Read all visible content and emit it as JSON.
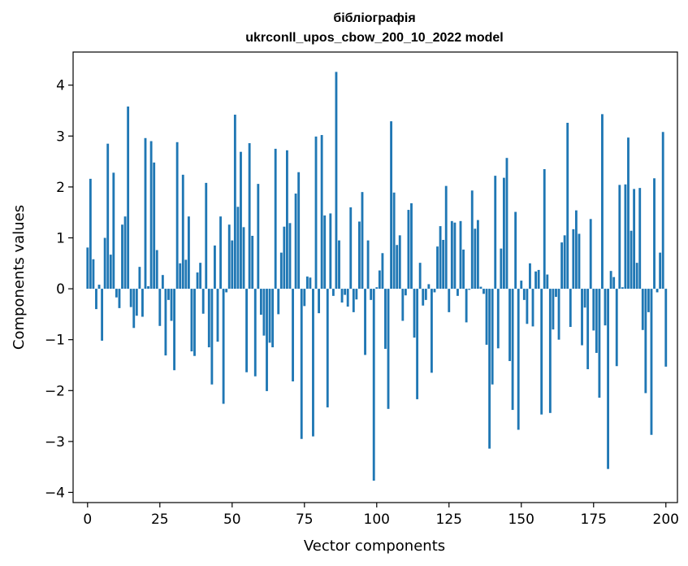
{
  "chart_data": {
    "type": "bar",
    "title": "бібліографія",
    "subtitle": "ukrconll_upos_cbow_200_10_2022 model",
    "xlabel": "Vector components",
    "ylabel": "Components values",
    "xlim": [
      -5,
      204
    ],
    "ylim": [
      -4.2,
      4.65
    ],
    "xticks": [
      0,
      25,
      50,
      75,
      100,
      125,
      150,
      175,
      200
    ],
    "xtick_labels": [
      "0",
      "25",
      "50",
      "75",
      "100",
      "125",
      "150",
      "175",
      "200"
    ],
    "yticks": [
      -4,
      -3,
      -2,
      -1,
      0,
      1,
      2,
      3,
      4
    ],
    "ytick_labels": [
      "−4",
      "−3",
      "−2",
      "−1",
      "0",
      "1",
      "2",
      "3",
      "4"
    ],
    "grid": false,
    "color": "#1f77b4",
    "values": [
      0.81,
      2.16,
      0.58,
      -0.4,
      0.08,
      -1.02,
      1.0,
      2.85,
      0.67,
      2.28,
      -0.17,
      -0.38,
      1.26,
      1.42,
      3.58,
      -0.36,
      -0.77,
      -0.53,
      0.43,
      -0.55,
      2.96,
      0.05,
      2.9,
      2.48,
      0.76,
      -0.73,
      0.27,
      -1.31,
      -0.22,
      -0.63,
      -1.6,
      2.88,
      0.5,
      2.24,
      0.57,
      1.42,
      -1.23,
      -1.32,
      0.32,
      0.51,
      -0.49,
      2.08,
      -1.15,
      -1.88,
      0.85,
      -1.04,
      1.42,
      -2.26,
      -0.07,
      1.26,
      0.95,
      3.42,
      1.61,
      2.69,
      1.21,
      -1.64,
      2.86,
      1.04,
      -1.72,
      2.06,
      -0.51,
      -0.92,
      -2.01,
      -1.06,
      -1.15,
      2.75,
      -0.5,
      0.71,
      1.22,
      2.72,
      1.29,
      -1.82,
      1.87,
      2.29,
      -2.95,
      -0.34,
      0.24,
      0.22,
      -2.9,
      2.99,
      -0.48,
      3.02,
      1.44,
      -2.33,
      1.48,
      -0.14,
      4.26,
      0.95,
      -0.27,
      -0.12,
      -0.35,
      1.6,
      -0.46,
      -0.21,
      1.32,
      1.9,
      -1.3,
      0.95,
      -0.22,
      -3.77,
      0.03,
      0.36,
      0.7,
      -1.18,
      -2.36,
      3.29,
      1.89,
      0.86,
      1.05,
      -0.63,
      -0.13,
      1.55,
      1.68,
      -0.96,
      -2.17,
      0.51,
      -0.33,
      -0.22,
      0.09,
      -1.65,
      -0.07,
      0.83,
      1.23,
      0.96,
      2.02,
      -0.46,
      1.33,
      1.3,
      -0.14,
      1.33,
      0.77,
      -0.66,
      -0.02,
      1.93,
      1.18,
      1.35,
      0.04,
      -0.1,
      -1.1,
      -3.14,
      -1.88,
      2.22,
      -1.17,
      0.79,
      2.18,
      2.57,
      -1.42,
      -2.38,
      1.51,
      -2.77,
      0.16,
      -0.22,
      -0.69,
      0.5,
      -0.74,
      0.34,
      0.37,
      -2.47,
      2.35,
      0.28,
      -2.44,
      -0.8,
      -0.16,
      -1.0,
      0.91,
      1.05,
      3.26,
      -0.75,
      1.17,
      1.54,
      1.08,
      -1.11,
      -0.37,
      -1.58,
      1.37,
      -0.82,
      -1.26,
      -2.14,
      3.43,
      -0.72,
      -3.54,
      0.35,
      0.23,
      -1.52,
      2.04,
      0.03,
      2.05,
      2.97,
      1.14,
      1.96,
      0.51,
      1.98,
      -0.81,
      -2.05,
      -0.46,
      -2.87,
      2.17,
      -0.07,
      0.71,
      3.08,
      -1.53
    ]
  }
}
